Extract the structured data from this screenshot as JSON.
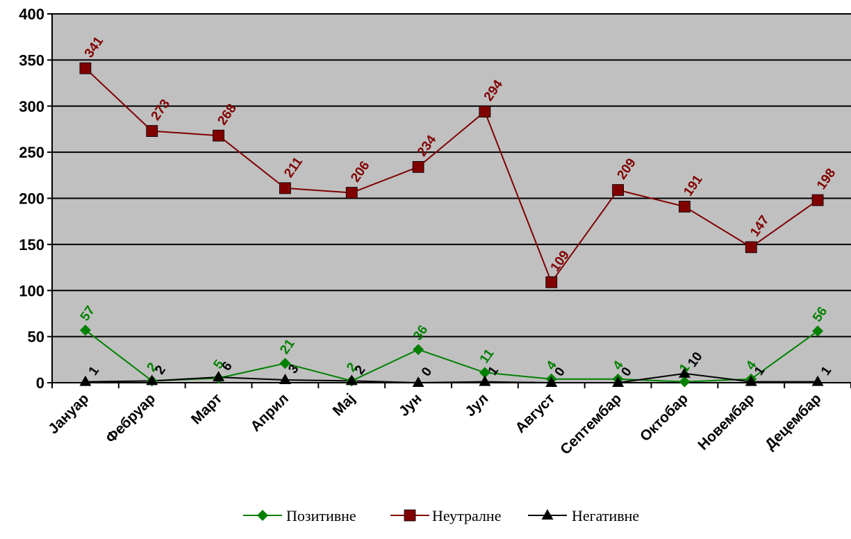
{
  "chart_data": {
    "type": "line",
    "title": "",
    "xlabel": "",
    "ylabel": "",
    "ylim": [
      0,
      400
    ],
    "yticks": [
      "0",
      "50",
      "100",
      "150",
      "200",
      "250",
      "300",
      "350",
      "400"
    ],
    "grid": true,
    "legend_position": "bottom",
    "plot_background": "#c0c0c0",
    "categories": [
      "Јануар",
      "Фебруар",
      "Март",
      "Април",
      "Мај",
      "Јун",
      "Јул",
      "Август",
      "Септембар",
      "Октобар",
      "Новембар",
      "Децембар"
    ],
    "series": [
      {
        "name": "Позитивне",
        "color": "#008000",
        "marker": "diamond",
        "values": [
          57,
          2,
          5,
          21,
          2,
          36,
          11,
          4,
          4,
          1,
          4,
          56
        ]
      },
      {
        "name": "Неутралне",
        "color": "#800000",
        "marker": "square",
        "values": [
          341,
          273,
          268,
          211,
          206,
          234,
          294,
          109,
          209,
          191,
          147,
          198
        ]
      },
      {
        "name": "Негативне",
        "color": "#000000",
        "marker": "triangle",
        "values": [
          1,
          2,
          6,
          3,
          2,
          0,
          1,
          0,
          0,
          10,
          1,
          1
        ]
      }
    ]
  }
}
